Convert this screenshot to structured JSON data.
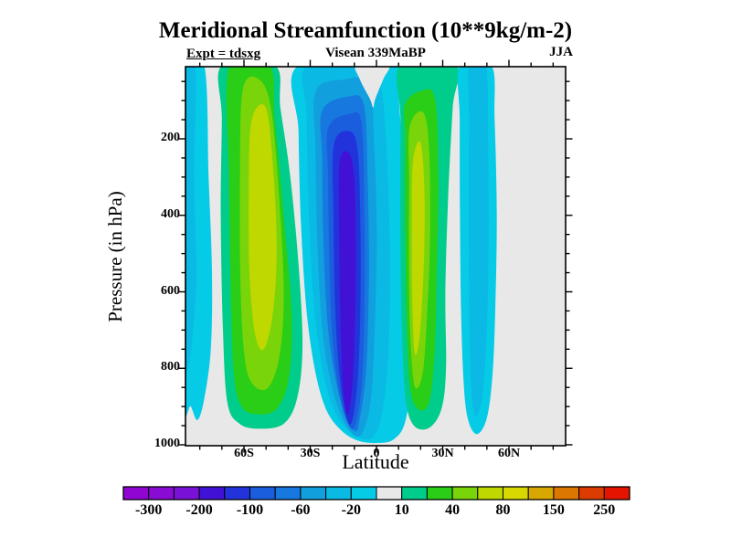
{
  "title": "Meridional Streamfunction (10**9kg/m-2)",
  "annotations": {
    "experiment": "Expt = tdsxg",
    "subtitle": "Visean 339MaBP",
    "season": "JJA"
  },
  "axes": {
    "y_label": "Pressure (in hPa)",
    "x_label": "Latitude",
    "y_ticks": [
      {
        "label": "200",
        "value": 200
      },
      {
        "label": "400",
        "value": 400
      },
      {
        "label": "600",
        "value": 600
      },
      {
        "label": "800",
        "value": 800
      },
      {
        "label": "1000",
        "value": 1000
      }
    ],
    "x_ticks": [
      {
        "label": "60S",
        "value": -60
      },
      {
        "label": "30S",
        "value": -30
      },
      {
        "label": "0",
        "value": 0
      },
      {
        "label": "30N",
        "value": 30
      },
      {
        "label": "60N",
        "value": 60
      }
    ]
  },
  "colorbar": {
    "labels": [
      "-300",
      "-200",
      "-100",
      "-60",
      "-20",
      "10",
      "40",
      "80",
      "150",
      "250"
    ],
    "colors": [
      "#9105D3",
      "#8A0BD3",
      "#7A11D6",
      "#4211D6",
      "#2233DC",
      "#1A5EDE",
      "#1778E0",
      "#129FDE",
      "#0ABAE4",
      "#06CBE6",
      "#E8E8E8",
      "#00CC8C",
      "#2ACE16",
      "#7AD40A",
      "#BED800",
      "#D8D800",
      "#D8A800",
      "#DC7800",
      "#DC3C00",
      "#E41400"
    ]
  },
  "chart_data": {
    "type": "filled_contour",
    "title": "Meridional Streamfunction (10**9kg/m-2)",
    "xlabel": "Latitude",
    "ylabel": "Pressure (in hPa)",
    "x_range": [
      -86,
      86
    ],
    "y_range": [
      1000,
      10
    ],
    "grid": false,
    "background_color": "#E8E8E8",
    "background_value_range": [
      -10,
      10
    ],
    "contour_levels": [
      -300,
      -250,
      -200,
      -150,
      -100,
      -80,
      -60,
      -40,
      -20,
      -10,
      10,
      20,
      40,
      60,
      80,
      100,
      150,
      200,
      250
    ],
    "legend_position": "bottom",
    "features": [
      {
        "name": "south-polar-negative-band",
        "lat": [
          -87,
          -74
        ],
        "min_value_range": [
          -40,
          -20
        ]
      },
      {
        "name": "southern-positive-cell",
        "lat": [
          -70,
          -34
        ],
        "max_value_range": [
          60,
          80
        ],
        "core": [
          -58,
          -45
        ]
      },
      {
        "name": "main-negative-cell",
        "lat": [
          -35,
          16
        ],
        "min_value_range": [
          -200,
          -150
        ],
        "core": [
          -17,
          -9
        ]
      },
      {
        "name": "northern-positive-cell",
        "lat": [
          11,
          36
        ],
        "max_value_range": [
          60,
          80
        ],
        "core": [
          16,
          22
        ]
      },
      {
        "name": "northern-negative-band",
        "lat": [
          38,
          55
        ],
        "min_value_range": [
          -40,
          -20
        ]
      }
    ],
    "regions": [
      {
        "range": [
          -20,
          -10
        ],
        "color": "#06CBE6",
        "points": [
          [
            -88,
            8
          ],
          [
            -78,
            8
          ],
          [
            -76,
            300
          ],
          [
            -74.5,
            550
          ],
          [
            -75,
            750
          ],
          [
            -78,
            880
          ],
          [
            -81,
            935
          ],
          [
            -84,
            900
          ],
          [
            -88,
            850
          ]
        ]
      },
      {
        "range": [
          -40,
          -20
        ],
        "color": "#0ABAE4",
        "points": [
          [
            -88,
            8
          ],
          [
            -82,
            8
          ],
          [
            -82.5,
            300
          ],
          [
            -81.5,
            550
          ],
          [
            -83,
            700
          ],
          [
            -85.5,
            800
          ],
          [
            -88,
            760
          ]
        ]
      },
      {
        "range": [
          10,
          20
        ],
        "color": "#00CC8C",
        "points": [
          [
            -70,
            8
          ],
          [
            -46,
            8
          ],
          [
            -43.5,
            120
          ],
          [
            -39,
            300
          ],
          [
            -35,
            550
          ],
          [
            -33.5,
            750
          ],
          [
            -36,
            880
          ],
          [
            -42,
            945
          ],
          [
            -53,
            958
          ],
          [
            -62,
            945
          ],
          [
            -67.5,
            890
          ],
          [
            -69.5,
            700
          ],
          [
            -70.5,
            400
          ],
          [
            -70,
            150
          ]
        ]
      },
      {
        "range": [
          20,
          40
        ],
        "color": "#2ACE16",
        "points": [
          [
            -66.5,
            8
          ],
          [
            -48.5,
            8
          ],
          [
            -46,
            150
          ],
          [
            -42,
            400
          ],
          [
            -38.5,
            650
          ],
          [
            -39.5,
            820
          ],
          [
            -45,
            905
          ],
          [
            -54,
            920
          ],
          [
            -61,
            900
          ],
          [
            -64.5,
            820
          ],
          [
            -66,
            600
          ],
          [
            -66.8,
            300
          ]
        ]
      },
      {
        "range": [
          40,
          60
        ],
        "color": "#7AD40A",
        "points": [
          [
            -60.5,
            70
          ],
          [
            -53,
            45
          ],
          [
            -47.5,
            130
          ],
          [
            -43.5,
            400
          ],
          [
            -42,
            620
          ],
          [
            -44,
            770
          ],
          [
            -49,
            850
          ],
          [
            -55.5,
            845
          ],
          [
            -59.5,
            780
          ],
          [
            -61.5,
            600
          ],
          [
            -61.8,
            300
          ]
        ]
      },
      {
        "range": [
          60,
          80
        ],
        "color": "#BED800",
        "points": [
          [
            -56.5,
            150
          ],
          [
            -50,
            120
          ],
          [
            -46.5,
            300
          ],
          [
            -45.2,
            500
          ],
          [
            -47,
            660
          ],
          [
            -51,
            750
          ],
          [
            -55,
            710
          ],
          [
            -57.5,
            550
          ],
          [
            -57.8,
            320
          ]
        ]
      },
      {
        "range": [
          -20,
          -10
        ],
        "color": "#06CBE6",
        "points": [
          [
            -35.2,
            8
          ],
          [
            10,
            8
          ],
          [
            10,
            80
          ],
          [
            11.5,
            200
          ],
          [
            14.2,
            400
          ],
          [
            16.4,
            620
          ],
          [
            15.8,
            820
          ],
          [
            13,
            940
          ],
          [
            8,
            985
          ],
          [
            1,
            995
          ],
          [
            -8,
            990
          ],
          [
            -16,
            962
          ],
          [
            -23,
            905
          ],
          [
            -28,
            800
          ],
          [
            -31.8,
            640
          ],
          [
            -34.2,
            420
          ],
          [
            -35.3,
            180
          ]
        ]
      },
      {
        "range": [
          -40,
          -20
        ],
        "color": "#0ABAE4",
        "points": [
          [
            -31.5,
            8
          ],
          [
            -2,
            8
          ],
          [
            2,
            60
          ],
          [
            3.8,
            150
          ],
          [
            5.2,
            300
          ],
          [
            6.2,
            550
          ],
          [
            5.2,
            780
          ],
          [
            2.5,
            920
          ],
          [
            -1,
            975
          ],
          [
            -6,
            985
          ],
          [
            -13,
            962
          ],
          [
            -19.5,
            905
          ],
          [
            -24.5,
            800
          ],
          [
            -28.5,
            620
          ],
          [
            -30.8,
            370
          ],
          [
            -31.6,
            140
          ]
        ]
      },
      {
        "range": [
          -60,
          -40
        ],
        "color": "#129FDE",
        "points": [
          [
            -27.5,
            75
          ],
          [
            -15,
            45
          ],
          [
            -3.2,
            55
          ],
          [
            -1.2,
            200
          ],
          [
            0.2,
            450
          ],
          [
            -0.8,
            700
          ],
          [
            -2.5,
            880
          ],
          [
            -6,
            965
          ],
          [
            -10,
            975
          ],
          [
            -15.5,
            930
          ],
          [
            -20.5,
            840
          ],
          [
            -24.5,
            700
          ],
          [
            -26.8,
            470
          ],
          [
            -27.6,
            230
          ]
        ]
      },
      {
        "range": [
          -80,
          -60
        ],
        "color": "#1778E0",
        "points": [
          [
            -24.5,
            125
          ],
          [
            -13,
            90
          ],
          [
            -5.8,
            110
          ],
          [
            -4,
            300
          ],
          [
            -3.4,
            550
          ],
          [
            -4.6,
            800
          ],
          [
            -7.5,
            930
          ],
          [
            -9.5,
            965
          ],
          [
            -14,
            925
          ],
          [
            -18.5,
            830
          ],
          [
            -22,
            690
          ],
          [
            -24,
            470
          ],
          [
            -24.6,
            250
          ]
        ]
      },
      {
        "range": [
          -100,
          -80
        ],
        "color": "#1A5EDE",
        "points": [
          [
            -21.8,
            170
          ],
          [
            -12,
            135
          ],
          [
            -6.8,
            160
          ],
          [
            -5.4,
            400
          ],
          [
            -5.4,
            650
          ],
          [
            -6.8,
            850
          ],
          [
            -10,
            955
          ],
          [
            -14,
            930
          ],
          [
            -17.5,
            840
          ],
          [
            -20.2,
            700
          ],
          [
            -21.5,
            480
          ],
          [
            -21.9,
            300
          ]
        ]
      },
      {
        "range": [
          -150,
          -100
        ],
        "color": "#2233DC",
        "points": [
          [
            -19.3,
            215
          ],
          [
            -12.5,
            180
          ],
          [
            -8.5,
            230
          ],
          [
            -7.2,
            450
          ],
          [
            -7.4,
            680
          ],
          [
            -8.8,
            850
          ],
          [
            -11.5,
            945
          ],
          [
            -14.5,
            905
          ],
          [
            -17,
            800
          ],
          [
            -18.7,
            640
          ],
          [
            -19.5,
            400
          ]
        ]
      },
      {
        "range": [
          -200,
          -150
        ],
        "color": "#4211D6",
        "points": [
          [
            -16.8,
            265
          ],
          [
            -12.8,
            235
          ],
          [
            -10,
            300
          ],
          [
            -9.3,
            500
          ],
          [
            -9.8,
            700
          ],
          [
            -11,
            850
          ],
          [
            -13,
            920
          ],
          [
            -15,
            860
          ],
          [
            -16.2,
            700
          ],
          [
            -16.9,
            450
          ]
        ]
      },
      {
        "range": [
          -10,
          10
        ],
        "color": "#E8E8E8",
        "points": [
          [
            -9,
            4
          ],
          [
            5.5,
            4
          ],
          [
            3,
            45
          ],
          [
            -0.5,
            95
          ],
          [
            -1.5,
            118
          ],
          [
            -3,
            95
          ],
          [
            -7.5,
            45
          ]
        ]
      },
      {
        "range": [
          10,
          20
        ],
        "color": "#00CC8C",
        "points": [
          [
            10.8,
            8
          ],
          [
            36,
            8
          ],
          [
            34.5,
            120
          ],
          [
            32.5,
            350
          ],
          [
            31.2,
            600
          ],
          [
            31.5,
            800
          ],
          [
            29.5,
            905
          ],
          [
            24,
            955
          ],
          [
            17,
            950
          ],
          [
            13.2,
            880
          ],
          [
            11.5,
            700
          ],
          [
            10.8,
            420
          ],
          [
            10.9,
            150
          ]
        ]
      },
      {
        "range": [
          20,
          40
        ],
        "color": "#2ACE16",
        "points": [
          [
            13,
            110
          ],
          [
            20,
            75
          ],
          [
            26.5,
            95
          ],
          [
            28,
            300
          ],
          [
            27.3,
            550
          ],
          [
            26.3,
            760
          ],
          [
            23.8,
            890
          ],
          [
            18.5,
            905
          ],
          [
            15,
            840
          ],
          [
            13.6,
            650
          ],
          [
            13,
            400
          ],
          [
            13,
            200
          ]
        ]
      },
      {
        "range": [
          40,
          60
        ],
        "color": "#7AD40A",
        "points": [
          [
            15,
            170
          ],
          [
            21,
            130
          ],
          [
            23.8,
            220
          ],
          [
            24.3,
            450
          ],
          [
            23,
            650
          ],
          [
            21,
            810
          ],
          [
            17.5,
            850
          ],
          [
            15.5,
            740
          ],
          [
            14.7,
            550
          ],
          [
            14.8,
            320
          ]
        ]
      },
      {
        "range": [
          60,
          80
        ],
        "color": "#BED800",
        "points": [
          [
            16.5,
            260
          ],
          [
            20,
            210
          ],
          [
            21.8,
            350
          ],
          [
            21.3,
            550
          ],
          [
            19.5,
            720
          ],
          [
            17.3,
            760
          ],
          [
            16.2,
            620
          ],
          [
            16,
            430
          ]
        ]
      },
      {
        "range": [
          -20,
          -10
        ],
        "color": "#06CBE6",
        "points": [
          [
            37.8,
            8
          ],
          [
            52,
            8
          ],
          [
            53.5,
            150
          ],
          [
            54.5,
            400
          ],
          [
            53.8,
            650
          ],
          [
            52.5,
            820
          ],
          [
            50,
            930
          ],
          [
            45.5,
            972
          ],
          [
            41.5,
            935
          ],
          [
            39.5,
            840
          ],
          [
            38.3,
            650
          ],
          [
            37.8,
            400
          ],
          [
            37.7,
            150
          ]
        ]
      },
      {
        "range": [
          -40,
          -20
        ],
        "color": "#0ABAE4",
        "points": [
          [
            42,
            8
          ],
          [
            49.5,
            8
          ],
          [
            50.5,
            200
          ],
          [
            50.8,
            450
          ],
          [
            50,
            700
          ],
          [
            48,
            870
          ],
          [
            44.8,
            925
          ],
          [
            42.8,
            840
          ],
          [
            42,
            650
          ],
          [
            41.8,
            400
          ],
          [
            41.9,
            150
          ]
        ]
      }
    ]
  }
}
